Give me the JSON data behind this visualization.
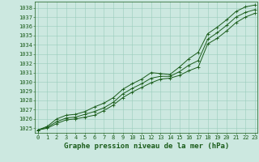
{
  "title": "Graphe pression niveau de la mer (hPa)",
  "background_color": "#cce8e0",
  "grid_color": "#99ccbb",
  "line_color": "#1a5c1a",
  "xlim": [
    -0.3,
    23.3
  ],
  "ylim": [
    1024.5,
    1038.7
  ],
  "yticks": [
    1025,
    1026,
    1027,
    1028,
    1029,
    1030,
    1031,
    1032,
    1033,
    1034,
    1035,
    1036,
    1037,
    1038
  ],
  "xticks": [
    0,
    1,
    2,
    3,
    4,
    5,
    6,
    7,
    8,
    9,
    10,
    11,
    12,
    13,
    14,
    15,
    16,
    17,
    18,
    19,
    20,
    21,
    22,
    23
  ],
  "x": [
    0,
    1,
    2,
    3,
    4,
    5,
    6,
    7,
    8,
    9,
    10,
    11,
    12,
    13,
    14,
    15,
    16,
    17,
    18,
    19,
    20,
    21,
    22,
    23
  ],
  "y_mean": [
    1024.8,
    1025.1,
    1025.7,
    1026.1,
    1026.2,
    1026.5,
    1026.8,
    1027.2,
    1027.8,
    1028.7,
    1029.3,
    1029.8,
    1030.4,
    1030.6,
    1030.6,
    1031.1,
    1031.8,
    1032.3,
    1034.6,
    1035.3,
    1036.1,
    1037.0,
    1037.5,
    1037.8
  ],
  "y_min": [
    1024.8,
    1025.0,
    1025.5,
    1025.9,
    1026.0,
    1026.2,
    1026.4,
    1026.9,
    1027.5,
    1028.3,
    1028.9,
    1029.4,
    1029.9,
    1030.3,
    1030.4,
    1030.7,
    1031.2,
    1031.6,
    1034.1,
    1034.7,
    1035.5,
    1036.4,
    1037.0,
    1037.4
  ],
  "y_max": [
    1024.8,
    1025.2,
    1026.0,
    1026.4,
    1026.5,
    1026.8,
    1027.3,
    1027.7,
    1028.3,
    1029.2,
    1029.8,
    1030.3,
    1031.0,
    1030.9,
    1030.8,
    1031.6,
    1032.5,
    1033.2,
    1035.2,
    1035.9,
    1036.7,
    1037.6,
    1038.1,
    1038.3
  ],
  "linewidth": 0.7,
  "markersize": 3.0,
  "tick_fontsize": 5.0,
  "title_fontsize": 6.5
}
